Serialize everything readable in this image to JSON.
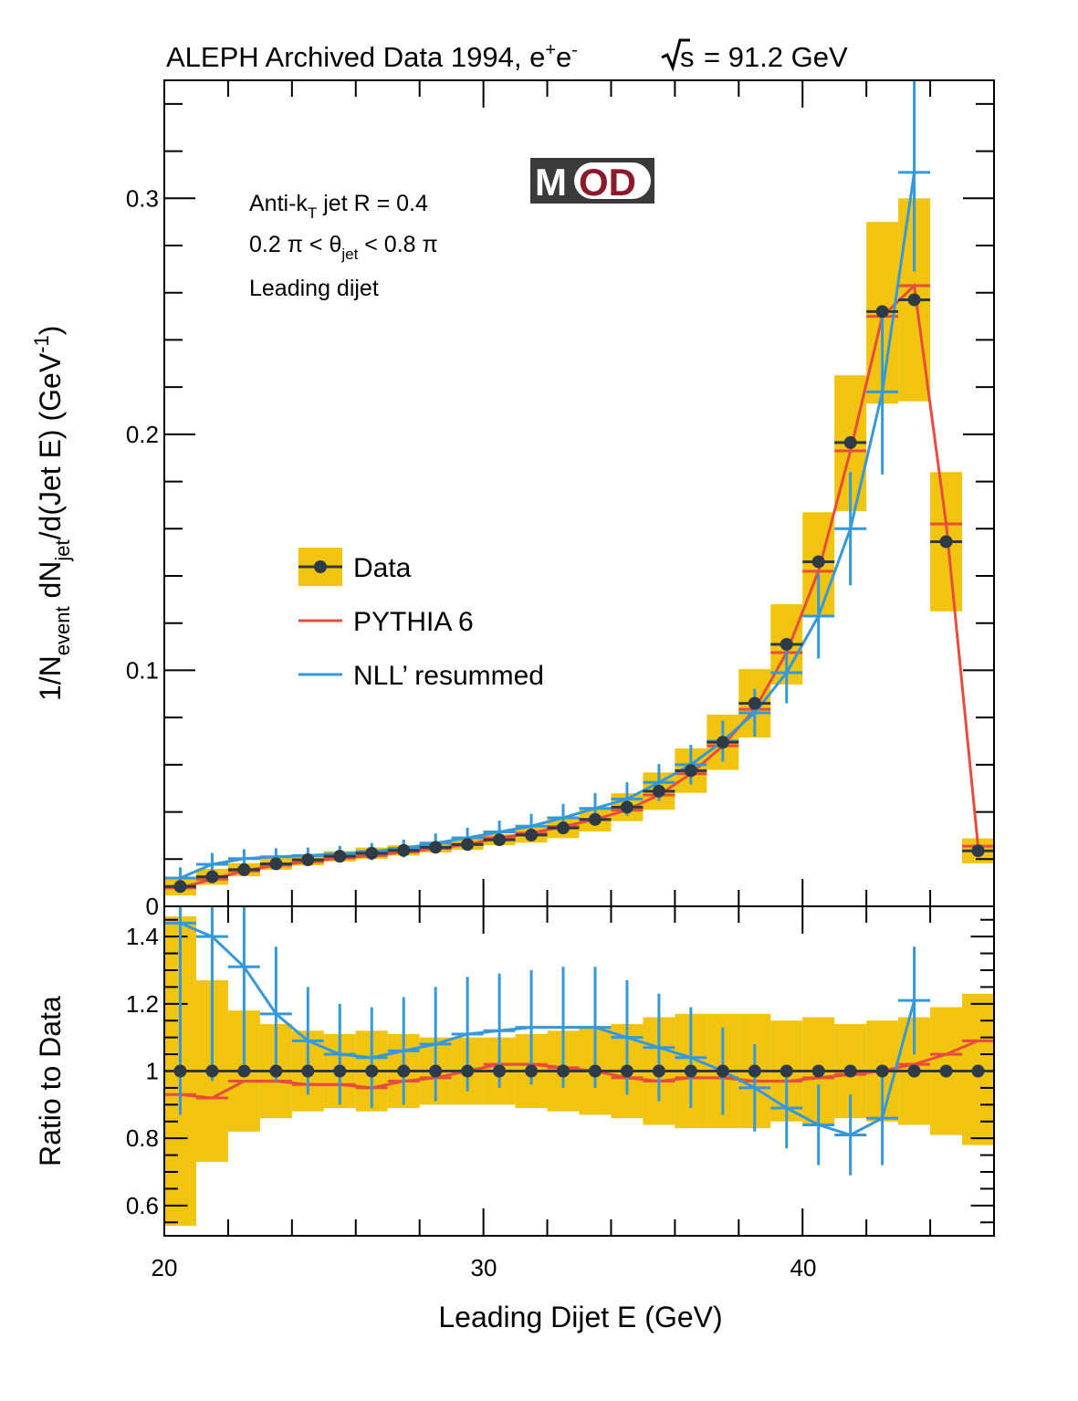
{
  "chart_data": {
    "type": "line",
    "title": {
      "main": "ALEPH Archived Data 1994, e",
      "sup1": "+",
      "mid": "e",
      "sup2": "-",
      "sqrt_s": "s",
      "energy": "= 91.2 GeV"
    },
    "logo": {
      "left": "M",
      "right": "OD"
    },
    "annotations": {
      "line1_pre": "Anti-k",
      "line1_sub": "T",
      "line1_post": " jet R = 0.4",
      "line2_pre": "0.2 π < θ",
      "line2_sub": "jet",
      "line2_post": " < 0.8 π",
      "line3": "Leading dijet"
    },
    "xlabel": "Leading Dijet E (GeV)",
    "xlim": [
      20,
      46
    ],
    "xticks": [
      "20",
      "30",
      "40"
    ],
    "top_panel": {
      "ylabel": {
        "p1": "1/N",
        "s1": "event",
        "p2": " dN",
        "s2": "jet",
        "p3": "/d(Jet E)  (GeV",
        "s3": "-1",
        "p4": ")"
      },
      "ylim": [
        0,
        0.35
      ],
      "yticks": [
        "0",
        "0.1",
        "0.2",
        "0.3"
      ]
    },
    "bottom_panel": {
      "ylabel": "Ratio to Data",
      "ylim": [
        0.51,
        1.49
      ],
      "yticks": [
        "0.6",
        "0.8",
        "1",
        "1.2",
        "1.4"
      ]
    },
    "legend": {
      "position": "center-left",
      "entries": [
        "Data",
        "PYTHIA 6",
        "NLL’ resummed"
      ]
    },
    "colors": {
      "data": "#2e3b47",
      "band": "#f1c40f",
      "pythia": "#e74c3c",
      "nll": "#3498db"
    },
    "bin_edges": [
      20,
      21,
      22,
      23,
      24,
      25,
      26,
      27,
      28,
      29,
      30,
      31,
      32,
      33,
      34,
      35,
      36,
      37,
      38,
      39,
      40,
      41,
      42,
      43,
      44,
      45,
      46
    ],
    "series": [
      {
        "name": "Data",
        "values": [
          0.0084,
          0.0125,
          0.0155,
          0.018,
          0.0197,
          0.0212,
          0.0225,
          0.0237,
          0.025,
          0.0262,
          0.0282,
          0.0302,
          0.0332,
          0.0368,
          0.042,
          0.0488,
          0.0575,
          0.0695,
          0.086,
          0.111,
          0.146,
          0.1965,
          0.252,
          0.257,
          0.1545,
          0.0235
        ],
        "band_low": [
          0.0046,
          0.0091,
          0.0127,
          0.0155,
          0.0173,
          0.019,
          0.0201,
          0.0215,
          0.0228,
          0.024,
          0.0259,
          0.027,
          0.0289,
          0.0317,
          0.0361,
          0.0409,
          0.0481,
          0.0578,
          0.0715,
          0.094,
          0.1225,
          0.1675,
          0.213,
          0.214,
          0.125,
          0.0182
        ],
        "band_high": [
          0.0122,
          0.0159,
          0.0183,
          0.0205,
          0.0221,
          0.0234,
          0.0249,
          0.0259,
          0.0272,
          0.0284,
          0.0305,
          0.0334,
          0.0375,
          0.0419,
          0.0479,
          0.0567,
          0.0669,
          0.0812,
          0.1005,
          0.128,
          0.167,
          0.225,
          0.29,
          0.3,
          0.184,
          0.0288
        ]
      },
      {
        "name": "PYTHIA 6",
        "values": [
          0.0078,
          0.0115,
          0.015,
          0.0174,
          0.0189,
          0.0205,
          0.0215,
          0.023,
          0.0245,
          0.0262,
          0.029,
          0.031,
          0.0338,
          0.0368,
          0.0408,
          0.0472,
          0.0562,
          0.068,
          0.0835,
          0.1075,
          0.142,
          0.193,
          0.25,
          0.263,
          0.162,
          0.0255
        ]
      },
      {
        "name": "NLL’ resummed",
        "values": [
          0.012,
          0.0178,
          0.0202,
          0.021,
          0.0215,
          0.0222,
          0.0232,
          0.0245,
          0.0268,
          0.029,
          0.0315,
          0.034,
          0.0375,
          0.0415,
          0.0455,
          0.0525,
          0.06,
          0.07,
          0.082,
          0.099,
          0.123,
          0.16,
          0.218,
          0.311
        ],
        "err": [
          0.0045,
          0.0048,
          0.004,
          0.0036,
          0.0034,
          0.0034,
          0.0036,
          0.0038,
          0.0041,
          0.0043,
          0.0048,
          0.0052,
          0.0059,
          0.0065,
          0.0071,
          0.0078,
          0.0084,
          0.0087,
          0.0101,
          0.013,
          0.018,
          0.024,
          0.035,
          0.042
        ]
      }
    ],
    "ratio": {
      "data": [
        1,
        1,
        1,
        1,
        1,
        1,
        1,
        1,
        1,
        1,
        1,
        1,
        1,
        1,
        1,
        1,
        1,
        1,
        1,
        1,
        1,
        1,
        1,
        1,
        1,
        1
      ],
      "band_low": [
        0.54,
        0.73,
        0.82,
        0.86,
        0.88,
        0.89,
        0.88,
        0.89,
        0.9,
        0.9,
        0.9,
        0.89,
        0.88,
        0.87,
        0.86,
        0.84,
        0.83,
        0.83,
        0.83,
        0.85,
        0.84,
        0.86,
        0.85,
        0.84,
        0.81,
        0.78
      ],
      "band_high": [
        1.46,
        1.27,
        1.18,
        1.14,
        1.12,
        1.11,
        1.12,
        1.11,
        1.1,
        1.1,
        1.1,
        1.11,
        1.12,
        1.13,
        1.14,
        1.16,
        1.17,
        1.17,
        1.17,
        1.15,
        1.16,
        1.14,
        1.15,
        1.16,
        1.19,
        1.23
      ],
      "pythia": [
        0.93,
        0.92,
        0.97,
        0.97,
        0.96,
        0.96,
        0.95,
        0.97,
        0.98,
        1.0,
        1.02,
        1.02,
        1.01,
        1.0,
        0.98,
        0.97,
        0.98,
        0.98,
        0.97,
        0.97,
        0.98,
        0.99,
        1.0,
        1.02,
        1.05,
        1.09
      ],
      "nll": [
        1.44,
        1.4,
        1.31,
        1.17,
        1.09,
        1.05,
        1.04,
        1.06,
        1.08,
        1.11,
        1.12,
        1.13,
        1.13,
        1.13,
        1.1,
        1.07,
        1.04,
        1.0,
        0.95,
        0.89,
        0.84,
        0.81,
        0.86,
        1.21
      ],
      "nll_err": [
        0.57,
        0.43,
        0.29,
        0.2,
        0.16,
        0.15,
        0.15,
        0.16,
        0.17,
        0.17,
        0.17,
        0.17,
        0.18,
        0.18,
        0.17,
        0.16,
        0.15,
        0.13,
        0.13,
        0.12,
        0.12,
        0.12,
        0.14,
        0.16
      ]
    }
  }
}
